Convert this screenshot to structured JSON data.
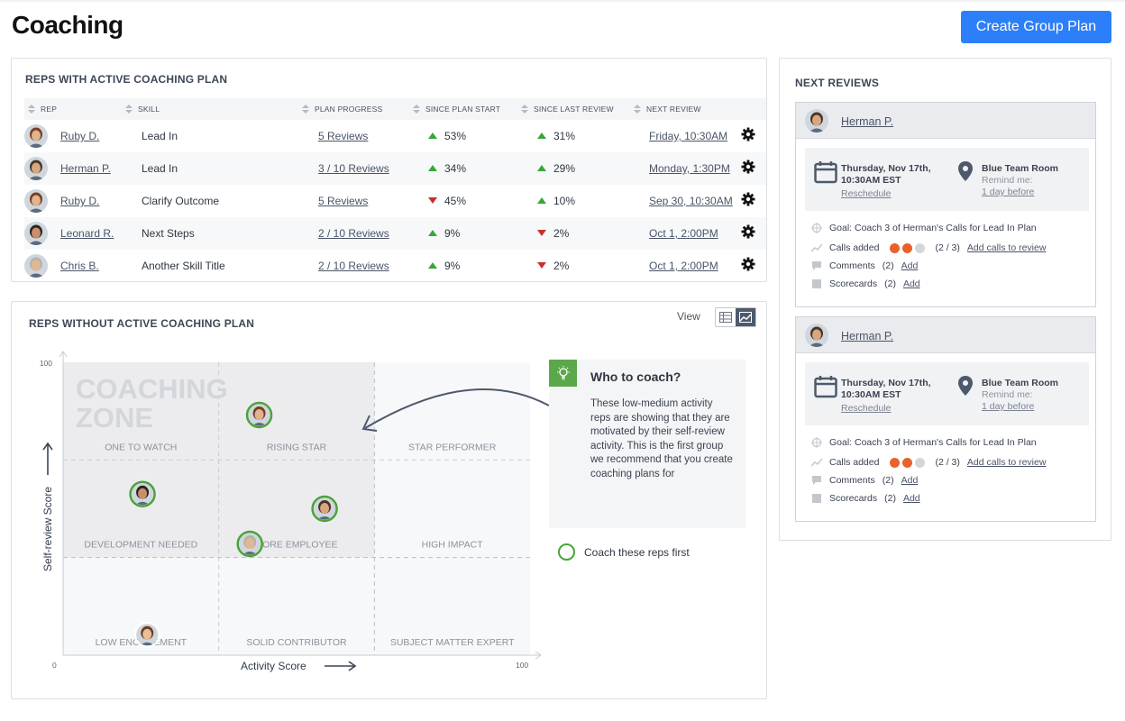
{
  "page": {
    "title": "Coaching",
    "create_button": "Create Group Plan"
  },
  "active": {
    "title": "REPS WITH ACTIVE COACHING PLAN",
    "columns": [
      "REP",
      "SKILL",
      "PLAN PROGRESS",
      "SINCE PLAN START",
      "SINCE LAST REVIEW",
      "NEXT REVIEW"
    ],
    "rows": [
      {
        "rep": "Ruby D.",
        "skill": "Lead In",
        "progress": "5 Reviews",
        "since_start": "53%",
        "start_dir": "up",
        "since_review": "31%",
        "review_dir": "up",
        "next": "Friday, 10:30AM"
      },
      {
        "rep": "Herman P.",
        "skill": "Lead In",
        "progress": "3 / 10 Reviews",
        "since_start": "34%",
        "start_dir": "up",
        "since_review": "29%",
        "review_dir": "up",
        "next": "Monday, 1:30PM"
      },
      {
        "rep": "Ruby D.",
        "skill": "Clarify Outcome",
        "progress": "5 Reviews",
        "since_start": "45%",
        "start_dir": "down",
        "since_review": "10%",
        "review_dir": "up",
        "next": "Sep 30, 10:30AM"
      },
      {
        "rep": "Leonard R.",
        "skill": "Next Steps",
        "progress": "2 / 10 Reviews",
        "since_start": "9%",
        "start_dir": "up",
        "since_review": "2%",
        "review_dir": "down",
        "next": "Oct 1, 2:00PM"
      },
      {
        "rep": "Chris B.",
        "skill": "Another Skill Title",
        "progress": "2 / 10 Reviews",
        "since_start": "9%",
        "start_dir": "up",
        "since_review": "2%",
        "review_dir": "down",
        "next": "Oct 1, 2:00PM"
      }
    ]
  },
  "without": {
    "title": "REPS WITHOUT ACTIVE COACHING PLAN",
    "view_label": "View",
    "callout_title": "Who to coach?",
    "callout_text": "These low-medium activity reps are showing that they are motivated by their self-review activity. This is the first group we recommend that you create coaching plans for",
    "coach_first": "Coach these reps first"
  },
  "chart_data": {
    "type": "scatter",
    "xlabel": "Activity Score",
    "ylabel": "Self-review Score",
    "xlim": [
      0,
      100
    ],
    "ylim": [
      0,
      100
    ],
    "x_ticks": [
      "0",
      "100"
    ],
    "y_ticks": [
      "100"
    ],
    "zone_label_line1": "COACHING",
    "zone_label_line2": "ZONE",
    "quadrants": [
      "ONE TO WATCH",
      "RISING STAR",
      "STAR PERFORMER",
      "DEVELOPMENT NEEDED",
      "CORE EMPLOYEE",
      "HIGH IMPACT",
      "LOW ENGAGEMENT",
      "SOLID CONTRIBUTOR",
      "SUBJECT MATTER EXPERT"
    ],
    "points": [
      {
        "x": 42,
        "y": 82,
        "highlight": true
      },
      {
        "x": 17,
        "y": 55,
        "highlight": true
      },
      {
        "x": 56,
        "y": 50,
        "highlight": true
      },
      {
        "x": 40,
        "y": 38,
        "highlight": true
      },
      {
        "x": 18,
        "y": 7,
        "highlight": false
      }
    ]
  },
  "reviews": {
    "title": "NEXT REVIEWS",
    "cards": [
      {
        "name": "Herman P.",
        "date": "Thursday, Nov 17th, 10:30AM EST",
        "reschedule": "Reschedule",
        "room": "Blue Team Room",
        "remind_label": "Remind me:",
        "remind_value": "1 day before",
        "goal": "Goal: Coach 3 of Herman's Calls for Lead In Plan",
        "calls_label": "Calls added",
        "calls_count": "(2 / 3)",
        "calls_link": "Add calls to review",
        "calls_progress": 0.667,
        "comments_label": "Comments",
        "comments_count": "(2)",
        "comments_link": "Add",
        "scorecards_label": "Scorecards",
        "scorecards_count": "(2)",
        "scorecards_link": "Add"
      },
      {
        "name": "Herman P.",
        "date": "Thursday, Nov 17th, 10:30AM EST",
        "reschedule": "Reschedule",
        "room": "Blue Team Room",
        "remind_label": "Remind me:",
        "remind_value": "1 day before",
        "goal": "Goal: Coach 3 of Herman's Calls for Lead In Plan",
        "calls_label": "Calls added",
        "calls_count": "(2 / 3)",
        "calls_link": "Add calls to review",
        "calls_progress": 0.667,
        "comments_label": "Comments",
        "comments_count": "(2)",
        "comments_link": "Add",
        "scorecards_label": "Scorecards",
        "scorecards_count": "(2)",
        "scorecards_link": "Add"
      }
    ]
  },
  "colors": {
    "accent": "#2d7ff9",
    "up": "#3aa53a",
    "down": "#c9302c",
    "highlight_ring": "#4aa33a",
    "calls_dot": "#e8622a"
  }
}
